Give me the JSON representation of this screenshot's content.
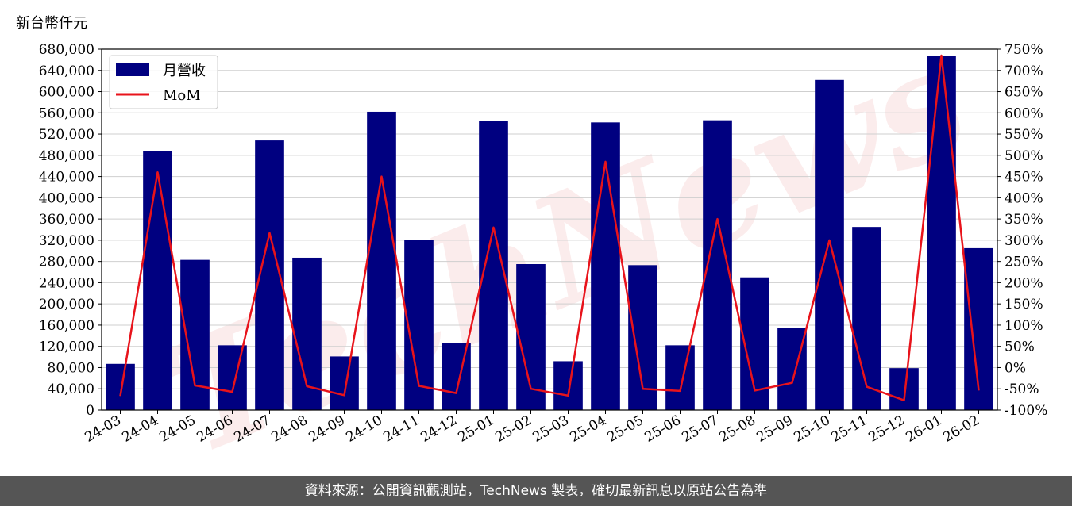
{
  "unit_label": "新台幣仟元",
  "footer_text": "資料來源：公開資訊觀測站，TechNews 製表，確切最新訊息以原站公告為準",
  "watermark": "TechNews",
  "colors": {
    "bar": "#000080",
    "line": "#e8131b",
    "grid": "#cfcfcf",
    "footer_bg": "#555555"
  },
  "chart_data": {
    "type": "bar",
    "categories": [
      "24-03",
      "24-04",
      "24-05",
      "24-06",
      "24-07",
      "24-08",
      "24-09",
      "24-10",
      "24-11",
      "24-12",
      "25-01",
      "25-02",
      "25-03",
      "25-04",
      "25-05",
      "25-06",
      "25-07",
      "25-08",
      "25-09",
      "25-10",
      "25-11",
      "25-12",
      "26-01",
      "26-02"
    ],
    "series": [
      {
        "name": "月營收",
        "type": "bar",
        "axis": "left",
        "values": [
          87000,
          488000,
          283000,
          122000,
          508000,
          287000,
          101000,
          562000,
          321000,
          127000,
          545000,
          275000,
          92000,
          542000,
          273000,
          122000,
          546000,
          250000,
          155000,
          622000,
          345000,
          79000,
          668000,
          305000
        ]
      },
      {
        "name": "MoM",
        "type": "line",
        "axis": "right",
        "values": [
          -67,
          460,
          -42,
          -57,
          317,
          -44,
          -65,
          450,
          -43,
          -60,
          330,
          -50,
          -66,
          485,
          -50,
          -55,
          350,
          -54,
          -36,
          300,
          -45,
          -77,
          735,
          -54
        ]
      }
    ],
    "y_left": {
      "range": [
        0,
        680000
      ],
      "ticks": [
        0,
        40000,
        80000,
        120000,
        160000,
        200000,
        240000,
        280000,
        320000,
        360000,
        400000,
        440000,
        480000,
        520000,
        560000,
        600000,
        640000,
        680000
      ],
      "tick_labels": [
        "0",
        "40,000",
        "80,000",
        "120,000",
        "160,000",
        "200,000",
        "240,000",
        "280,000",
        "320,000",
        "360,000",
        "400,000",
        "440,000",
        "480,000",
        "520,000",
        "560,000",
        "600,000",
        "640,000",
        "680,000"
      ]
    },
    "y_right": {
      "range": [
        -100,
        750
      ],
      "ticks": [
        -100,
        -50,
        0,
        50,
        100,
        150,
        200,
        250,
        300,
        350,
        400,
        450,
        500,
        550,
        600,
        650,
        700,
        750
      ],
      "tick_labels": [
        "-100%",
        "-50%",
        "0%",
        "50%",
        "100%",
        "150%",
        "200%",
        "250%",
        "300%",
        "350%",
        "400%",
        "450%",
        "500%",
        "550%",
        "600%",
        "650%",
        "700%",
        "750%"
      ]
    },
    "grid": true,
    "legend_position": "top-left"
  }
}
